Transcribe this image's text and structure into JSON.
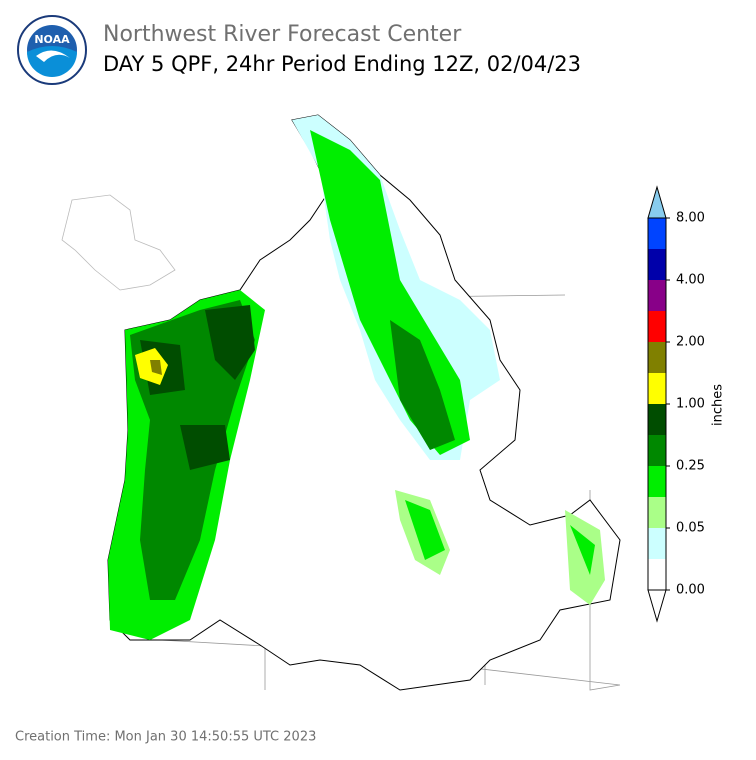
{
  "header": {
    "logo_text": "NOAA",
    "title": "Northwest River Forecast Center",
    "subtitle": "DAY 5 QPF, 24hr Period Ending 12Z, 02/04/23"
  },
  "colorbar": {
    "label": "inches",
    "colors": [
      "#ffffff",
      "#ccffff",
      "#aaff88",
      "#00ee00",
      "#008800",
      "#004d00",
      "#ffff00",
      "#808000",
      "#ff0000",
      "#880088",
      "#0000aa",
      "#0044ff"
    ],
    "over_color": "#88ccee",
    "ticks": [
      {
        "value": 0,
        "label": "0.00"
      },
      {
        "value": 0.05,
        "label": "0.05"
      },
      {
        "value": 0.25,
        "label": "0.25"
      },
      {
        "value": 1,
        "label": "1.00"
      },
      {
        "value": 2,
        "label": "2.00"
      },
      {
        "value": 4,
        "label": "4.00"
      },
      {
        "value": 8,
        "label": "8.00"
      }
    ]
  },
  "footer": {
    "creation_time": "Creation Time: Mon Jan 30 14:50:55 UTC 2023"
  }
}
